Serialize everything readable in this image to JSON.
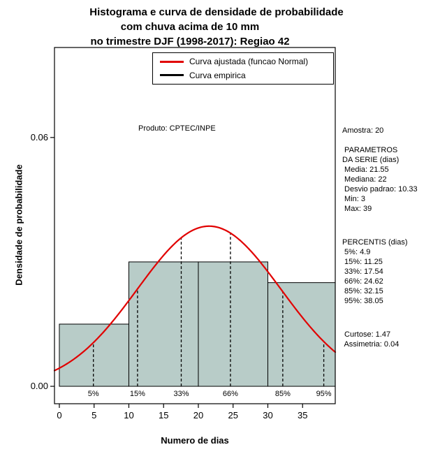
{
  "chart_data": {
    "type": "bar",
    "subtype": "histogram-with-density-curve",
    "title": [
      "Histograma e curva de densidade de probabilidade",
      "com chuva acima de 10 mm",
      "no trimestre DJF (1998-2017): Regiao 42"
    ],
    "xlabel": "Numero de dias",
    "ylabel": "Densidade de probabilidade",
    "xlim": [
      -0.7,
      39.7
    ],
    "ylim": [
      -0.0042,
      0.0817
    ],
    "grid": false,
    "x_ticks": [
      0,
      5,
      10,
      15,
      20,
      25,
      30,
      35
    ],
    "y_ticks": [
      {
        "value": 0,
        "label": "0.00"
      },
      {
        "value": 0.06,
        "label": "0.06"
      }
    ],
    "histogram": {
      "breaks": [
        0,
        10,
        20,
        30,
        40
      ],
      "densities": [
        0.015,
        0.03,
        0.03,
        0.025
      ],
      "fill": "#b8ccc8",
      "stroke": "#000000"
    },
    "normal_curve": {
      "mean": 21.55,
      "sd": 10.33,
      "color": "#e10000"
    },
    "percentiles": [
      {
        "label": "5%",
        "value": 4.9
      },
      {
        "label": "15%",
        "value": 11.25
      },
      {
        "label": "33%",
        "value": 17.54
      },
      {
        "label": "66%",
        "value": 24.62
      },
      {
        "label": "85%",
        "value": 32.15
      },
      {
        "label": "95%",
        "value": 38.05
      }
    ],
    "inner_annotation": "Produto: CPTEC/INPE",
    "legend": {
      "position": "top-right",
      "items": [
        {
          "label": "Curva ajustada (funcao Normal)",
          "color": "#e10000"
        },
        {
          "label": "Curva empirica",
          "color": "#000000"
        }
      ]
    }
  },
  "stats_panel": {
    "amostra": "Amostra: 20",
    "params_header1": " PARAMETROS",
    "params_header2": "DA SERIE (dias)",
    "params": [
      " Media: 21.55",
      " Mediana: 22",
      " Desvio padrao: 10.33",
      " Min: 3",
      " Max: 39"
    ],
    "percentis_header": "PERCENTIS (dias)",
    "percentis": [
      " 5%: 4.9",
      " 15%: 11.25",
      " 33%: 17.54",
      " 66%: 24.62",
      " 85%: 32.15",
      " 95%: 38.05"
    ],
    "curtose": " Curtose: 1.47",
    "assimetria": " Assimetria: 0.04"
  }
}
